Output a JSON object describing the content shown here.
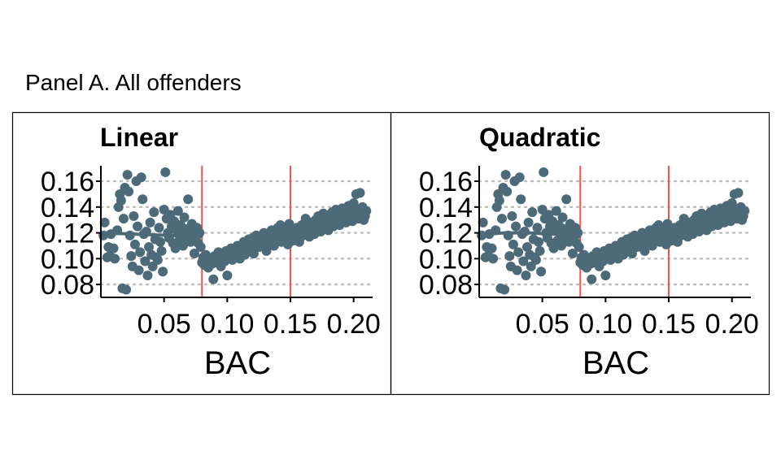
{
  "panel_title": "Panel A. All offenders",
  "colors": {
    "points": "#4d6a78",
    "fit": "#4d6a78",
    "cutoff": "#f2534a",
    "grid": "#bdbdbd",
    "axis": "#000000"
  },
  "chart_data": [
    {
      "type": "scatter",
      "title": "Linear",
      "xlabel": "BAC",
      "ylabel": "",
      "xlim": [
        0.0,
        0.215
      ],
      "ylim": [
        0.07,
        0.172
      ],
      "x_ticks": [
        0.05,
        0.1,
        0.15,
        0.2
      ],
      "x_tick_labels": [
        "0.05",
        "0.10",
        "0.15",
        "0.20"
      ],
      "y_ticks": [
        0.08,
        0.1,
        0.12,
        0.14,
        0.16
      ],
      "y_tick_labels": [
        "0.08",
        "0.10",
        "0.12",
        "0.14",
        "0.16"
      ],
      "grid": "horizontal dotted",
      "cutoffs": [
        0.08,
        0.15
      ],
      "fit": "linear",
      "series": [
        {
          "type": "fit",
          "segment": "below 0.08",
          "x": [
            0.001,
            0.079
          ],
          "y": [
            0.12,
            0.117
          ]
        }
      ],
      "points": [
        [
          0.002,
          0.118
        ],
        [
          0.003,
          0.128
        ],
        [
          0.005,
          0.101
        ],
        [
          0.006,
          0.109
        ],
        [
          0.007,
          0.102
        ],
        [
          0.008,
          0.119
        ],
        [
          0.01,
          0.108
        ],
        [
          0.011,
          0.1
        ],
        [
          0.013,
          0.122
        ],
        [
          0.014,
          0.14
        ],
        [
          0.015,
          0.15
        ],
        [
          0.016,
          0.145
        ],
        [
          0.017,
          0.077
        ],
        [
          0.018,
          0.131
        ],
        [
          0.019,
          0.155
        ],
        [
          0.02,
          0.076
        ],
        [
          0.021,
          0.165
        ],
        [
          0.022,
          0.152
        ],
        [
          0.023,
          0.118
        ],
        [
          0.024,
          0.102
        ],
        [
          0.025,
          0.094
        ],
        [
          0.026,
          0.133
        ],
        [
          0.027,
          0.111
        ],
        [
          0.028,
          0.16
        ],
        [
          0.029,
          0.125
        ],
        [
          0.03,
          0.091
        ],
        [
          0.031,
          0.105
        ],
        [
          0.032,
          0.163
        ],
        [
          0.033,
          0.146
        ],
        [
          0.034,
          0.119
        ],
        [
          0.035,
          0.098
        ],
        [
          0.036,
          0.121
        ],
        [
          0.037,
          0.087
        ],
        [
          0.038,
          0.109
        ],
        [
          0.039,
          0.128
        ],
        [
          0.04,
          0.103
        ],
        [
          0.041,
          0.094
        ],
        [
          0.042,
          0.136
        ],
        [
          0.043,
          0.115
        ],
        [
          0.044,
          0.101
        ],
        [
          0.045,
          0.099
        ],
        [
          0.046,
          0.124
        ],
        [
          0.047,
          0.113
        ],
        [
          0.048,
          0.106
        ],
        [
          0.049,
          0.09
        ],
        [
          0.05,
          0.138
        ],
        [
          0.051,
          0.167
        ],
        [
          0.052,
          0.131
        ],
        [
          0.053,
          0.12
        ],
        [
          0.054,
          0.116
        ],
        [
          0.055,
          0.134
        ],
        [
          0.056,
          0.125
        ],
        [
          0.057,
          0.112
        ],
        [
          0.058,
          0.129
        ],
        [
          0.059,
          0.108
        ],
        [
          0.06,
          0.122
        ],
        [
          0.061,
          0.137
        ],
        [
          0.062,
          0.114
        ],
        [
          0.063,
          0.126
        ],
        [
          0.064,
          0.119
        ],
        [
          0.065,
          0.11
        ],
        [
          0.066,
          0.132
        ],
        [
          0.067,
          0.123
        ],
        [
          0.068,
          0.115
        ],
        [
          0.069,
          0.146
        ],
        [
          0.07,
          0.121
        ],
        [
          0.071,
          0.113
        ],
        [
          0.072,
          0.127
        ],
        [
          0.073,
          0.118
        ],
        [
          0.074,
          0.104
        ],
        [
          0.075,
          0.116
        ],
        [
          0.076,
          0.124
        ],
        [
          0.077,
          0.112
        ],
        [
          0.078,
          0.12
        ],
        [
          0.079,
          0.109
        ],
        [
          0.08,
          0.097
        ],
        [
          0.081,
          0.101
        ],
        [
          0.082,
          0.095
        ],
        [
          0.083,
          0.103
        ],
        [
          0.084,
          0.099
        ],
        [
          0.085,
          0.093
        ],
        [
          0.086,
          0.1
        ],
        [
          0.087,
          0.098
        ],
        [
          0.088,
          0.096
        ],
        [
          0.089,
          0.084
        ],
        [
          0.09,
          0.102
        ],
        [
          0.091,
          0.097
        ],
        [
          0.092,
          0.099
        ],
        [
          0.093,
          0.105
        ],
        [
          0.094,
          0.101
        ],
        [
          0.095,
          0.094
        ],
        [
          0.096,
          0.1
        ],
        [
          0.097,
          0.103
        ],
        [
          0.098,
          0.098
        ],
        [
          0.099,
          0.106
        ],
        [
          0.1,
          0.087
        ],
        [
          0.101,
          0.104
        ],
        [
          0.102,
          0.101
        ],
        [
          0.103,
          0.108
        ],
        [
          0.104,
          0.099
        ],
        [
          0.105,
          0.105
        ],
        [
          0.106,
          0.107
        ],
        [
          0.107,
          0.102
        ],
        [
          0.108,
          0.11
        ],
        [
          0.109,
          0.104
        ],
        [
          0.11,
          0.1
        ],
        [
          0.111,
          0.109
        ],
        [
          0.112,
          0.106
        ],
        [
          0.113,
          0.113
        ],
        [
          0.114,
          0.103
        ],
        [
          0.115,
          0.111
        ],
        [
          0.116,
          0.108
        ],
        [
          0.117,
          0.115
        ],
        [
          0.118,
          0.107
        ],
        [
          0.119,
          0.112
        ],
        [
          0.12,
          0.116
        ],
        [
          0.121,
          0.104
        ],
        [
          0.122,
          0.11
        ],
        [
          0.123,
          0.118
        ],
        [
          0.124,
          0.113
        ],
        [
          0.125,
          0.109
        ],
        [
          0.126,
          0.117
        ],
        [
          0.127,
          0.114
        ],
        [
          0.128,
          0.111
        ],
        [
          0.129,
          0.12
        ],
        [
          0.13,
          0.115
        ],
        [
          0.131,
          0.106
        ],
        [
          0.132,
          0.119
        ],
        [
          0.133,
          0.112
        ],
        [
          0.134,
          0.116
        ],
        [
          0.135,
          0.122
        ],
        [
          0.136,
          0.118
        ],
        [
          0.137,
          0.11
        ],
        [
          0.138,
          0.121
        ],
        [
          0.139,
          0.115
        ],
        [
          0.14,
          0.124
        ],
        [
          0.141,
          0.117
        ],
        [
          0.142,
          0.126
        ],
        [
          0.143,
          0.113
        ],
        [
          0.144,
          0.119
        ],
        [
          0.145,
          0.123
        ],
        [
          0.146,
          0.116
        ],
        [
          0.147,
          0.12
        ],
        [
          0.148,
          0.111
        ],
        [
          0.149,
          0.127
        ],
        [
          0.15,
          0.118
        ],
        [
          0.151,
          0.122
        ],
        [
          0.152,
          0.114
        ],
        [
          0.153,
          0.12
        ],
        [
          0.154,
          0.117
        ],
        [
          0.155,
          0.124
        ],
        [
          0.156,
          0.119
        ],
        [
          0.157,
          0.113
        ],
        [
          0.158,
          0.121
        ],
        [
          0.159,
          0.126
        ],
        [
          0.16,
          0.118
        ],
        [
          0.161,
          0.123
        ],
        [
          0.162,
          0.131
        ],
        [
          0.163,
          0.12
        ],
        [
          0.164,
          0.125
        ],
        [
          0.165,
          0.117
        ],
        [
          0.166,
          0.128
        ],
        [
          0.167,
          0.122
        ],
        [
          0.168,
          0.127
        ],
        [
          0.169,
          0.119
        ],
        [
          0.17,
          0.13
        ],
        [
          0.171,
          0.124
        ],
        [
          0.172,
          0.133
        ],
        [
          0.173,
          0.126
        ],
        [
          0.174,
          0.121
        ],
        [
          0.175,
          0.128
        ],
        [
          0.176,
          0.135
        ],
        [
          0.177,
          0.124
        ],
        [
          0.178,
          0.13
        ],
        [
          0.179,
          0.127
        ],
        [
          0.18,
          0.122
        ],
        [
          0.181,
          0.132
        ],
        [
          0.182,
          0.128
        ],
        [
          0.183,
          0.136
        ],
        [
          0.184,
          0.125
        ],
        [
          0.185,
          0.131
        ],
        [
          0.186,
          0.138
        ],
        [
          0.187,
          0.129
        ],
        [
          0.188,
          0.134
        ],
        [
          0.189,
          0.126
        ],
        [
          0.19,
          0.133
        ],
        [
          0.191,
          0.139
        ],
        [
          0.192,
          0.13
        ],
        [
          0.193,
          0.136
        ],
        [
          0.194,
          0.128
        ],
        [
          0.195,
          0.135
        ],
        [
          0.196,
          0.141
        ],
        [
          0.197,
          0.132
        ],
        [
          0.198,
          0.137
        ],
        [
          0.199,
          0.129
        ],
        [
          0.2,
          0.143
        ],
        [
          0.201,
          0.134
        ],
        [
          0.202,
          0.15
        ],
        [
          0.203,
          0.138
        ],
        [
          0.204,
          0.131
        ],
        [
          0.205,
          0.151
        ],
        [
          0.206,
          0.136
        ],
        [
          0.207,
          0.14
        ],
        [
          0.208,
          0.13
        ],
        [
          0.209,
          0.133
        ],
        [
          0.21,
          0.137
        ]
      ]
    },
    {
      "type": "scatter",
      "title": "Quadratic",
      "xlabel": "BAC",
      "ylabel": "",
      "xlim": [
        0.0,
        0.215
      ],
      "ylim": [
        0.07,
        0.172
      ],
      "x_ticks": [
        0.05,
        0.1,
        0.15,
        0.2
      ],
      "x_tick_labels": [
        "0.05",
        "0.10",
        "0.15",
        "0.20"
      ],
      "y_ticks": [
        0.08,
        0.1,
        0.12,
        0.14,
        0.16
      ],
      "y_tick_labels": [
        "0.08",
        "0.10",
        "0.12",
        "0.14",
        "0.16"
      ],
      "grid": "horizontal dotted",
      "cutoffs": [
        0.08,
        0.15
      ],
      "fit": "quadratic",
      "series": [
        {
          "type": "fit",
          "segment": "below 0.08",
          "x": [
            0.001,
            0.02,
            0.04,
            0.06,
            0.079
          ],
          "y": [
            0.119,
            0.12,
            0.12,
            0.119,
            0.117
          ]
        }
      ],
      "points": "same as Linear panel"
    }
  ]
}
